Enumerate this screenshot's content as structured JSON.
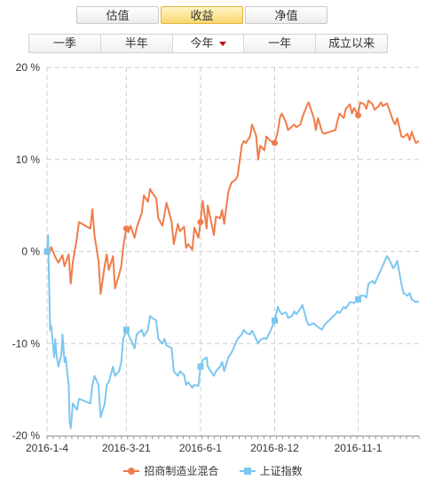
{
  "tabs": [
    {
      "label": "估值",
      "active": false
    },
    {
      "label": "收益",
      "active": true
    },
    {
      "label": "净值",
      "active": false
    }
  ],
  "periods": [
    {
      "label": "一季",
      "active": false
    },
    {
      "label": "半年",
      "active": false
    },
    {
      "label": "今年",
      "active": true,
      "dropdown": true
    },
    {
      "label": "一年",
      "active": false
    },
    {
      "label": "成立以来",
      "active": false
    }
  ],
  "colors": {
    "series1": "#f07c4a",
    "series2": "#7cc7ef",
    "grid": "#cccccc",
    "axis": "#999999"
  },
  "chart_data": {
    "type": "line",
    "title": "",
    "xlabel": "",
    "ylabel": "",
    "ylim": [
      -20,
      20
    ],
    "yticks": [
      20,
      10,
      0,
      -10,
      -20
    ],
    "ytick_labels": [
      "20 %",
      "10 %",
      "0 %",
      "-10 %",
      "-20 %"
    ],
    "xticks": [
      "2016-1-4",
      "2016-3-21",
      "2016-6-1",
      "2016-8-12",
      "2016-11-1"
    ],
    "x_range": [
      "2016-01-04",
      "2016-12-30"
    ],
    "legend_position": "bottom",
    "grid": true,
    "series": [
      {
        "name": "招商制造业混合",
        "color": "#f07c4a",
        "marker": "circle",
        "points": [
          [
            "2016-01-04",
            0.0
          ],
          [
            "2016-01-06",
            -0.3
          ],
          [
            "2016-01-08",
            0.5
          ],
          [
            "2016-01-12",
            -0.6
          ],
          [
            "2016-01-15",
            -1.2
          ],
          [
            "2016-01-19",
            -0.4
          ],
          [
            "2016-01-21",
            -1.6
          ],
          [
            "2016-01-25",
            -0.3
          ],
          [
            "2016-01-27",
            -3.5
          ],
          [
            "2016-01-29",
            -1.2
          ],
          [
            "2016-02-02",
            1.5
          ],
          [
            "2016-02-04",
            3.2
          ],
          [
            "2016-02-15",
            2.5
          ],
          [
            "2016-02-17",
            4.6
          ],
          [
            "2016-02-19",
            1.8
          ],
          [
            "2016-02-23",
            -1.0
          ],
          [
            "2016-02-25",
            -4.6
          ],
          [
            "2016-02-29",
            -1.5
          ],
          [
            "2016-03-02",
            -0.3
          ],
          [
            "2016-03-04",
            -2.0
          ],
          [
            "2016-03-08",
            -0.5
          ],
          [
            "2016-03-10",
            -4.0
          ],
          [
            "2016-03-14",
            -2.5
          ],
          [
            "2016-03-16",
            -1.6
          ],
          [
            "2016-03-18",
            0.5
          ],
          [
            "2016-03-21",
            2.5
          ],
          [
            "2016-03-23",
            2.1
          ],
          [
            "2016-03-25",
            2.8
          ],
          [
            "2016-03-29",
            1.5
          ],
          [
            "2016-03-31",
            2.6
          ],
          [
            "2016-04-05",
            4.2
          ],
          [
            "2016-04-07",
            6.1
          ],
          [
            "2016-04-11",
            5.4
          ],
          [
            "2016-04-13",
            6.8
          ],
          [
            "2016-04-15",
            6.4
          ],
          [
            "2016-04-19",
            5.8
          ],
          [
            "2016-04-21",
            3.6
          ],
          [
            "2016-04-25",
            2.8
          ],
          [
            "2016-04-27",
            4.0
          ],
          [
            "2016-04-29",
            5.3
          ],
          [
            "2016-05-04",
            3.2
          ],
          [
            "2016-05-06",
            0.8
          ],
          [
            "2016-05-10",
            3.0
          ],
          [
            "2016-05-12",
            2.2
          ],
          [
            "2016-05-16",
            2.7
          ],
          [
            "2016-05-18",
            0.4
          ],
          [
            "2016-05-20",
            0.8
          ],
          [
            "2016-05-24",
            0.2
          ],
          [
            "2016-05-26",
            2.6
          ],
          [
            "2016-05-30",
            1.5
          ],
          [
            "2016-06-01",
            3.2
          ],
          [
            "2016-06-03",
            5.5
          ],
          [
            "2016-06-07",
            2.5
          ],
          [
            "2016-06-08",
            5.0
          ],
          [
            "2016-06-14",
            1.8
          ],
          [
            "2016-06-16",
            3.8
          ],
          [
            "2016-06-20",
            3.6
          ],
          [
            "2016-06-22",
            4.5
          ],
          [
            "2016-06-24",
            3.0
          ],
          [
            "2016-06-28",
            6.5
          ],
          [
            "2016-07-01",
            7.5
          ],
          [
            "2016-07-05",
            7.8
          ],
          [
            "2016-07-07",
            8.2
          ],
          [
            "2016-07-11",
            11.5
          ],
          [
            "2016-07-13",
            12.0
          ],
          [
            "2016-07-15",
            11.8
          ],
          [
            "2016-07-19",
            12.5
          ],
          [
            "2016-07-21",
            13.8
          ],
          [
            "2016-07-25",
            12.6
          ],
          [
            "2016-07-27",
            10.0
          ],
          [
            "2016-07-29",
            11.5
          ],
          [
            "2016-08-02",
            11.0
          ],
          [
            "2016-08-04",
            12.5
          ],
          [
            "2016-08-08",
            12.0
          ],
          [
            "2016-08-12",
            11.8
          ],
          [
            "2016-08-15",
            13.0
          ],
          [
            "2016-08-17",
            14.5
          ],
          [
            "2016-08-19",
            15.0
          ],
          [
            "2016-08-23",
            14.0
          ],
          [
            "2016-08-25",
            13.2
          ],
          [
            "2016-08-29",
            13.6
          ],
          [
            "2016-08-31",
            13.8
          ],
          [
            "2016-09-02",
            13.5
          ],
          [
            "2016-09-06",
            13.8
          ],
          [
            "2016-09-08",
            14.6
          ],
          [
            "2016-09-12",
            15.8
          ],
          [
            "2016-09-14",
            16.2
          ],
          [
            "2016-09-19",
            14.5
          ],
          [
            "2016-09-21",
            13.2
          ],
          [
            "2016-09-23",
            14.5
          ],
          [
            "2016-09-27",
            13.0
          ],
          [
            "2016-09-29",
            12.8
          ],
          [
            "2016-10-10",
            13.2
          ],
          [
            "2016-10-12",
            14.2
          ],
          [
            "2016-10-14",
            15.0
          ],
          [
            "2016-10-18",
            14.5
          ],
          [
            "2016-10-20",
            15.5
          ],
          [
            "2016-10-24",
            16.0
          ],
          [
            "2016-10-26",
            15.0
          ],
          [
            "2016-10-28",
            15.6
          ],
          [
            "2016-11-01",
            14.8
          ],
          [
            "2016-11-03",
            16.2
          ],
          [
            "2016-11-07",
            16.0
          ],
          [
            "2016-11-09",
            15.5
          ],
          [
            "2016-11-11",
            16.4
          ],
          [
            "2016-11-15",
            16.0
          ],
          [
            "2016-11-17",
            15.4
          ],
          [
            "2016-11-21",
            15.8
          ],
          [
            "2016-11-23",
            16.2
          ],
          [
            "2016-11-25",
            15.8
          ],
          [
            "2016-11-29",
            16.1
          ],
          [
            "2016-12-01",
            15.5
          ],
          [
            "2016-12-05",
            14.2
          ],
          [
            "2016-12-07",
            13.8
          ],
          [
            "2016-12-09",
            14.5
          ],
          [
            "2016-12-13",
            12.5
          ],
          [
            "2016-12-15",
            12.4
          ],
          [
            "2016-12-19",
            12.8
          ],
          [
            "2016-12-21",
            12.1
          ],
          [
            "2016-12-23",
            13.0
          ],
          [
            "2016-12-27",
            11.8
          ],
          [
            "2016-12-30",
            12.0
          ]
        ]
      },
      {
        "name": "上证指数",
        "color": "#7cc7ef",
        "marker": "square",
        "points": [
          [
            "2016-01-04",
            0.0
          ],
          [
            "2016-01-05",
            1.8
          ],
          [
            "2016-01-06",
            -3.5
          ],
          [
            "2016-01-07",
            -8.5
          ],
          [
            "2016-01-08",
            -8.0
          ],
          [
            "2016-01-11",
            -11.5
          ],
          [
            "2016-01-12",
            -9.5
          ],
          [
            "2016-01-13",
            -11.0
          ],
          [
            "2016-01-15",
            -12.5
          ],
          [
            "2016-01-18",
            -11.2
          ],
          [
            "2016-01-19",
            -9.0
          ],
          [
            "2016-01-21",
            -12.0
          ],
          [
            "2016-01-22",
            -11.5
          ],
          [
            "2016-01-25",
            -14.5
          ],
          [
            "2016-01-26",
            -18.5
          ],
          [
            "2016-01-27",
            -19.2
          ],
          [
            "2016-01-28",
            -18.0
          ],
          [
            "2016-01-29",
            -16.5
          ],
          [
            "2016-02-02",
            -17.2
          ],
          [
            "2016-02-04",
            -16.0
          ],
          [
            "2016-02-15",
            -16.5
          ],
          [
            "2016-02-17",
            -14.5
          ],
          [
            "2016-02-19",
            -13.5
          ],
          [
            "2016-02-23",
            -14.5
          ],
          [
            "2016-02-25",
            -18.0
          ],
          [
            "2016-02-29",
            -16.5
          ],
          [
            "2016-03-02",
            -14.5
          ],
          [
            "2016-03-04",
            -14.2
          ],
          [
            "2016-03-08",
            -12.5
          ],
          [
            "2016-03-10",
            -13.5
          ],
          [
            "2016-03-14",
            -13.0
          ],
          [
            "2016-03-16",
            -12.0
          ],
          [
            "2016-03-18",
            -9.5
          ],
          [
            "2016-03-21",
            -8.5
          ],
          [
            "2016-03-23",
            -9.0
          ],
          [
            "2016-03-25",
            -9.5
          ],
          [
            "2016-03-29",
            -10.5
          ],
          [
            "2016-03-31",
            -9.0
          ],
          [
            "2016-04-05",
            -8.5
          ],
          [
            "2016-04-07",
            -9.2
          ],
          [
            "2016-04-11",
            -8.5
          ],
          [
            "2016-04-13",
            -7.0
          ],
          [
            "2016-04-15",
            -7.2
          ],
          [
            "2016-04-19",
            -7.5
          ],
          [
            "2016-04-21",
            -9.5
          ],
          [
            "2016-04-25",
            -10.0
          ],
          [
            "2016-04-27",
            -9.5
          ],
          [
            "2016-04-29",
            -10.2
          ],
          [
            "2016-05-04",
            -10.5
          ],
          [
            "2016-05-06",
            -13.0
          ],
          [
            "2016-05-10",
            -13.5
          ],
          [
            "2016-05-12",
            -13.0
          ],
          [
            "2016-05-16",
            -13.4
          ],
          [
            "2016-05-18",
            -14.5
          ],
          [
            "2016-05-20",
            -14.2
          ],
          [
            "2016-05-24",
            -14.8
          ],
          [
            "2016-05-26",
            -14.5
          ],
          [
            "2016-05-30",
            -14.6
          ],
          [
            "2016-06-01",
            -12.5
          ],
          [
            "2016-06-03",
            -11.8
          ],
          [
            "2016-06-07",
            -11.5
          ],
          [
            "2016-06-08",
            -12.5
          ],
          [
            "2016-06-14",
            -13.5
          ],
          [
            "2016-06-16",
            -13.0
          ],
          [
            "2016-06-20",
            -12.5
          ],
          [
            "2016-06-22",
            -12.0
          ],
          [
            "2016-06-24",
            -13.0
          ],
          [
            "2016-06-28",
            -11.5
          ],
          [
            "2016-07-01",
            -11.0
          ],
          [
            "2016-07-05",
            -10.0
          ],
          [
            "2016-07-07",
            -9.5
          ],
          [
            "2016-07-11",
            -9.0
          ],
          [
            "2016-07-13",
            -8.5
          ],
          [
            "2016-07-15",
            -8.8
          ],
          [
            "2016-07-19",
            -9.0
          ],
          [
            "2016-07-21",
            -8.6
          ],
          [
            "2016-07-25",
            -9.5
          ],
          [
            "2016-07-27",
            -10.0
          ],
          [
            "2016-07-29",
            -9.6
          ],
          [
            "2016-08-02",
            -9.4
          ],
          [
            "2016-08-04",
            -9.5
          ],
          [
            "2016-08-08",
            -8.6
          ],
          [
            "2016-08-12",
            -7.5
          ],
          [
            "2016-08-15",
            -6.0
          ],
          [
            "2016-08-17",
            -6.5
          ],
          [
            "2016-08-19",
            -6.8
          ],
          [
            "2016-08-23",
            -6.6
          ],
          [
            "2016-08-25",
            -7.2
          ],
          [
            "2016-08-29",
            -7.0
          ],
          [
            "2016-08-31",
            -6.5
          ],
          [
            "2016-09-02",
            -6.8
          ],
          [
            "2016-09-06",
            -6.2
          ],
          [
            "2016-09-08",
            -5.8
          ],
          [
            "2016-09-12",
            -7.5
          ],
          [
            "2016-09-14",
            -8.0
          ],
          [
            "2016-09-19",
            -7.8
          ],
          [
            "2016-09-21",
            -8.0
          ],
          [
            "2016-09-23",
            -8.2
          ],
          [
            "2016-09-27",
            -8.5
          ],
          [
            "2016-09-29",
            -8.0
          ],
          [
            "2016-10-10",
            -6.8
          ],
          [
            "2016-10-12",
            -6.5
          ],
          [
            "2016-10-14",
            -6.7
          ],
          [
            "2016-10-18",
            -6.0
          ],
          [
            "2016-10-20",
            -6.2
          ],
          [
            "2016-10-24",
            -5.5
          ],
          [
            "2016-10-26",
            -5.5
          ],
          [
            "2016-10-28",
            -5.6
          ],
          [
            "2016-11-01",
            -5.2
          ],
          [
            "2016-11-03",
            -4.8
          ],
          [
            "2016-11-07",
            -4.8
          ],
          [
            "2016-11-09",
            -5.0
          ],
          [
            "2016-11-11",
            -3.5
          ],
          [
            "2016-11-15",
            -3.2
          ],
          [
            "2016-11-17",
            -3.5
          ],
          [
            "2016-11-21",
            -2.5
          ],
          [
            "2016-11-23",
            -2.0
          ],
          [
            "2016-11-25",
            -1.5
          ],
          [
            "2016-11-29",
            -0.5
          ],
          [
            "2016-12-01",
            -0.8
          ],
          [
            "2016-12-05",
            -1.8
          ],
          [
            "2016-12-07",
            -1.5
          ],
          [
            "2016-12-09",
            -1.0
          ],
          [
            "2016-12-13",
            -3.5
          ],
          [
            "2016-12-15",
            -4.5
          ],
          [
            "2016-12-19",
            -4.8
          ],
          [
            "2016-12-21",
            -4.5
          ],
          [
            "2016-12-23",
            -5.2
          ],
          [
            "2016-12-27",
            -5.5
          ],
          [
            "2016-12-30",
            -5.4
          ]
        ]
      }
    ]
  }
}
